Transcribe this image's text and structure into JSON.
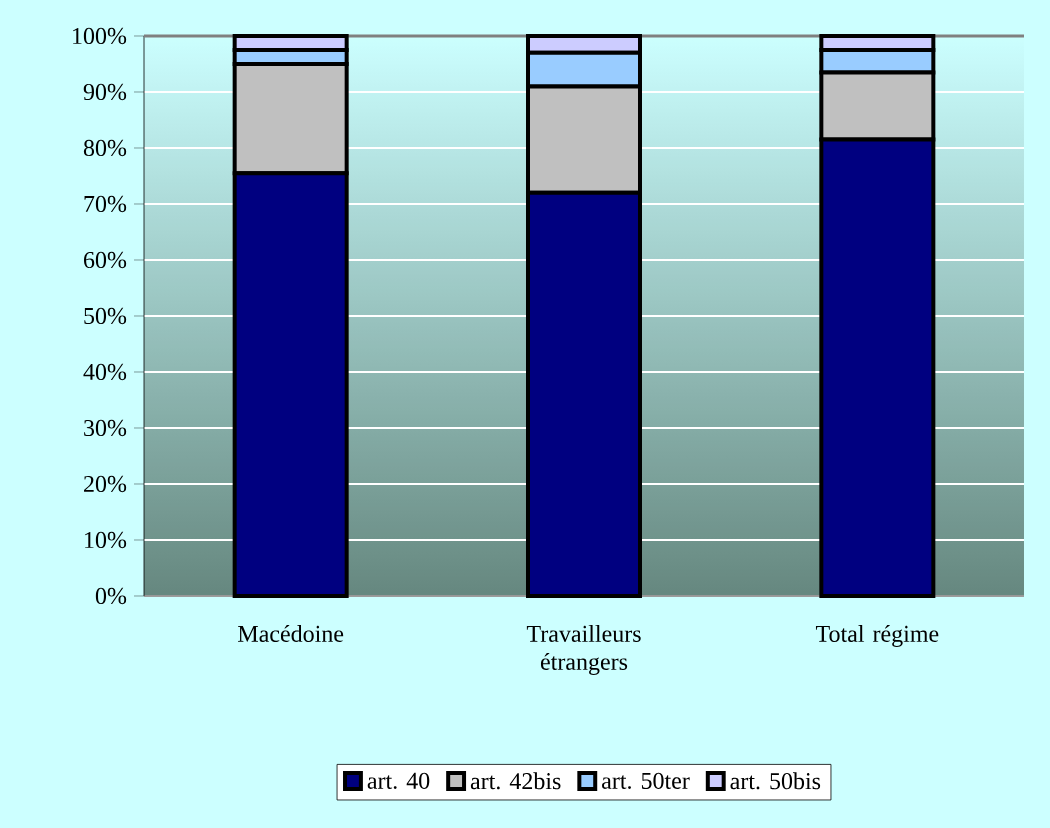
{
  "chart_data": {
    "type": "bar",
    "stacked": true,
    "categories": [
      "Macédoine",
      "Travailleurs étrangers",
      "Total régime"
    ],
    "series": [
      {
        "name": "art. 40",
        "color": "#000080",
        "values": [
          75.5,
          72,
          81.5
        ]
      },
      {
        "name": "art. 42bis",
        "color": "#c0c0c0",
        "values": [
          19.5,
          19,
          12
        ]
      },
      {
        "name": "art. 50ter",
        "color": "#99ccff",
        "values": [
          2.5,
          6,
          4
        ]
      },
      {
        "name": "art. 50bis",
        "color": "#ccccff",
        "values": [
          2.5,
          3,
          2.5
        ]
      }
    ],
    "ylim": [
      0,
      100
    ],
    "yticks": [
      {
        "value": 0,
        "label": "0%"
      },
      {
        "value": 10,
        "label": "10%"
      },
      {
        "value": 20,
        "label": "20%"
      },
      {
        "value": 30,
        "label": "30%"
      },
      {
        "value": 40,
        "label": "40%"
      },
      {
        "value": 50,
        "label": "50%"
      },
      {
        "value": 60,
        "label": "60%"
      },
      {
        "value": 70,
        "label": "70%"
      },
      {
        "value": 80,
        "label": "80%"
      },
      {
        "value": 90,
        "label": "90%"
      },
      {
        "value": 100,
        "label": "100%"
      }
    ],
    "grid": "y",
    "legend": "bottom"
  }
}
